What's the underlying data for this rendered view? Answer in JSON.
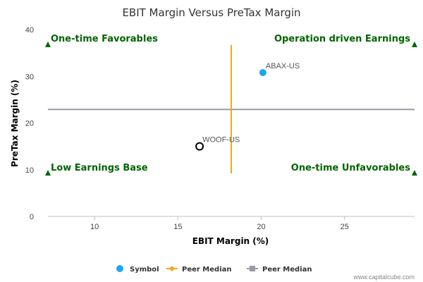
{
  "chart_data": {
    "type": "scatter",
    "title": "EBIT Margin Versus PreTax Margin",
    "xlabel": "EBIT Margin (%)",
    "ylabel": "PreTax Margin (%)",
    "xlim": [
      7.2,
      29.2
    ],
    "ylim": [
      0,
      40
    ],
    "xticks": [
      10,
      15,
      20,
      25
    ],
    "yticks": [
      0,
      10,
      20,
      30,
      40
    ],
    "grid": false,
    "points": [
      {
        "label": "ABAX-US",
        "x": 20.1,
        "y": 30.8,
        "style": "symbol",
        "color": "#1ea5f4"
      },
      {
        "label": "WOOF-US",
        "x": 16.3,
        "y": 15.0,
        "style": "peer-open-circle",
        "color": "#000000"
      }
    ],
    "peer_median": {
      "x": 18.2,
      "y": 22.9,
      "x_color": "#f4a71c",
      "y_color": "#999aa5",
      "y_range": [
        9.2,
        36.7
      ]
    },
    "quadrant_labels": {
      "top_left": "One-time Favorables",
      "top_right": "Operation driven Earnings",
      "bottom_left": "Low Earnings Base",
      "bottom_right": "One-time Unfavorables"
    },
    "quadrant_markers": [
      {
        "x": 7.2,
        "y": 36.7
      },
      {
        "x": 29.2,
        "y": 36.7
      },
      {
        "x": 7.2,
        "y": 9.2
      },
      {
        "x": 29.2,
        "y": 9.2
      }
    ],
    "marker_color": "#006400",
    "legend": {
      "placement": "bottom-center",
      "items": [
        {
          "label": "Symbol",
          "kind": "dot",
          "color": "#1ea5f4"
        },
        {
          "label": "Peer Median",
          "kind": "line-diamond",
          "color": "#f4a71c"
        },
        {
          "label": "Peer Median",
          "kind": "line-square",
          "color": "#999aa5"
        }
      ]
    },
    "credit": "www.capitalcube.com"
  }
}
